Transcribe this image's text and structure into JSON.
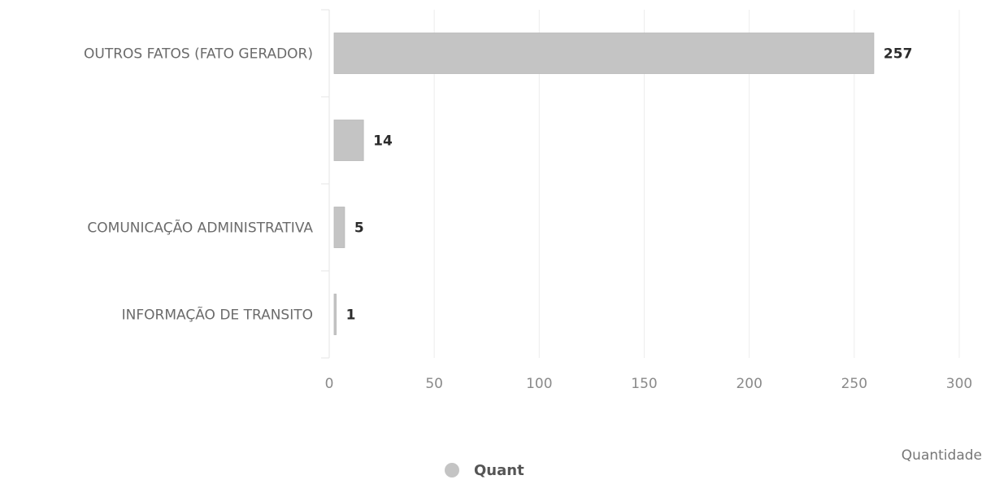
{
  "chart_data": {
    "type": "bar",
    "orientation": "horizontal",
    "categories": [
      "OUTROS FATOS (FATO GERADOR)",
      "",
      "COMUNICAÇÃO ADMINISTRATIVA",
      "INFORMAÇÃO DE TRANSITO"
    ],
    "series": [
      {
        "name": "Quant",
        "values": [
          257,
          14,
          5,
          1
        ],
        "color": "#c4c4c4"
      }
    ],
    "x_ticks": [
      0,
      50,
      100,
      150,
      200,
      250,
      300
    ],
    "xlim": [
      0,
      300
    ],
    "xlabel": "Quantidade",
    "grid": true,
    "legend_position": "bottom-center",
    "data_labels": true
  }
}
